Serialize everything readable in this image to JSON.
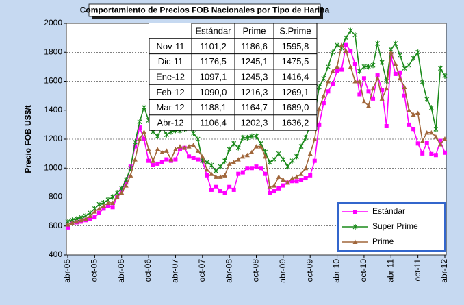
{
  "chart_data": {
    "type": "line",
    "title": "Comportamiento de Precios FOB Nacionales por Tipo de Harina",
    "y_label": "Precio FOB US$/t",
    "categories": [
      "abr-05",
      null,
      null,
      null,
      null,
      null,
      "oct-05",
      null,
      null,
      null,
      null,
      null,
      "abr-06",
      null,
      null,
      null,
      null,
      null,
      "oct-06",
      null,
      null,
      null,
      null,
      null,
      "abr-07",
      null,
      null,
      null,
      null,
      null,
      "oct-07",
      null,
      null,
      null,
      null,
      null,
      "abr-08",
      null,
      null,
      null,
      null,
      null,
      "oct-08",
      null,
      null,
      null,
      null,
      null,
      "abr-09",
      null,
      null,
      null,
      null,
      null,
      "oct-09",
      null,
      null,
      null,
      null,
      null,
      "abr-10",
      null,
      null,
      null,
      null,
      null,
      "oct-10",
      null,
      null,
      null,
      null,
      null,
      "abr-11",
      null,
      null,
      null,
      null,
      null,
      "oct-11",
      null,
      null,
      null,
      null,
      null,
      "abr-12"
    ],
    "series": [
      {
        "name": "Estándar",
        "color": "#ff00ff",
        "marker": "square",
        "values": [
          590,
          620,
          625,
          630,
          640,
          650,
          660,
          690,
          720,
          740,
          730,
          800,
          850,
          900,
          1010,
          1150,
          1280,
          1200,
          1050,
          1020,
          1030,
          1040,
          1060,
          1050,
          1060,
          1130,
          1140,
          1080,
          1070,
          1060,
          1050,
          950,
          850,
          870,
          840,
          830,
          870,
          850,
          960,
          970,
          1000,
          1000,
          1010,
          1000,
          960,
          830,
          840,
          860,
          880,
          900,
          910,
          910,
          920,
          930,
          950,
          1050,
          1300,
          1450,
          1530,
          1580,
          1670,
          1680,
          1850,
          1810,
          1720,
          1510,
          1620,
          1530,
          1480,
          1640,
          1540,
          1290,
          1770,
          1650,
          1660,
          1500,
          1300,
          1270,
          1170,
          1101.2,
          1176.5,
          1097.1,
          1090,
          1188.1,
          1106.4
        ]
      },
      {
        "name": "Super Prime",
        "color": "#1a8a1a",
        "marker": "star",
        "values": [
          630,
          640,
          650,
          660,
          670,
          690,
          720,
          750,
          760,
          780,
          800,
          830,
          860,
          920,
          1000,
          1180,
          1320,
          1420,
          1330,
          1250,
          1220,
          1280,
          1230,
          1250,
          1260,
          1260,
          1270,
          1290,
          1240,
          1200,
          1050,
          1040,
          1020,
          980,
          1010,
          1050,
          1130,
          1170,
          1140,
          1210,
          1210,
          1220,
          1220,
          1170,
          1110,
          1040,
          1060,
          1100,
          1060,
          1010,
          1050,
          1080,
          1150,
          1210,
          1300,
          1360,
          1560,
          1620,
          1700,
          1800,
          1850,
          1830,
          1900,
          1950,
          1920,
          1670,
          1700,
          1700,
          1710,
          1860,
          1730,
          1600,
          1820,
          1860,
          1780,
          1690,
          1710,
          1760,
          1800,
          1595.8,
          1475.5,
          1416.4,
          1269.1,
          1689.0,
          1636.2
        ]
      },
      {
        "name": "Prime",
        "color": "#a0663a",
        "marker": "triangle",
        "values": [
          610,
          620,
          630,
          640,
          650,
          670,
          700,
          720,
          740,
          760,
          760,
          800,
          830,
          880,
          950,
          1060,
          1200,
          1250,
          1130,
          1050,
          1130,
          1110,
          1120,
          1060,
          1130,
          1150,
          1140,
          1150,
          1160,
          1120,
          1080,
          990,
          960,
          940,
          940,
          950,
          1030,
          1040,
          1060,
          1080,
          1090,
          1110,
          1150,
          1150,
          1080,
          870,
          880,
          940,
          920,
          900,
          930,
          940,
          960,
          1000,
          1100,
          1200,
          1410,
          1500,
          1600,
          1670,
          1700,
          1850,
          1810,
          1700,
          1600,
          1600,
          1460,
          1430,
          1550,
          1620,
          1480,
          1550,
          1800,
          1720,
          1620,
          1560,
          1400,
          1370,
          1380,
          1186.6,
          1245.1,
          1245.3,
          1216.3,
          1164.7,
          1202.3
        ]
      }
    ],
    "ylim": [
      400,
      2000
    ],
    "yticks": [
      400,
      600,
      800,
      1000,
      1200,
      1400,
      1600,
      1800,
      2000
    ],
    "grid": true,
    "legend": "lower right",
    "table": {
      "columns": [
        "Estándar",
        "Prime",
        "S.Prime"
      ],
      "rows": [
        {
          "label": "Nov-11",
          "cells": [
            "1101,2",
            "1186,6",
            "1595,8"
          ]
        },
        {
          "label": "Dic-11",
          "cells": [
            "1176,5",
            "1245,1",
            "1475,5"
          ]
        },
        {
          "label": "Ene-12",
          "cells": [
            "1097,1",
            "1245,3",
            "1416,4"
          ]
        },
        {
          "label": "Feb-12",
          "cells": [
            "1090,0",
            "1216,3",
            "1269,1"
          ]
        },
        {
          "label": "Mar-12",
          "cells": [
            "1188,1",
            "1164,7",
            "1689,0"
          ]
        },
        {
          "label": "Abr-12",
          "cells": [
            "1106,4",
            "1202,3",
            "1636,2"
          ]
        }
      ]
    }
  }
}
